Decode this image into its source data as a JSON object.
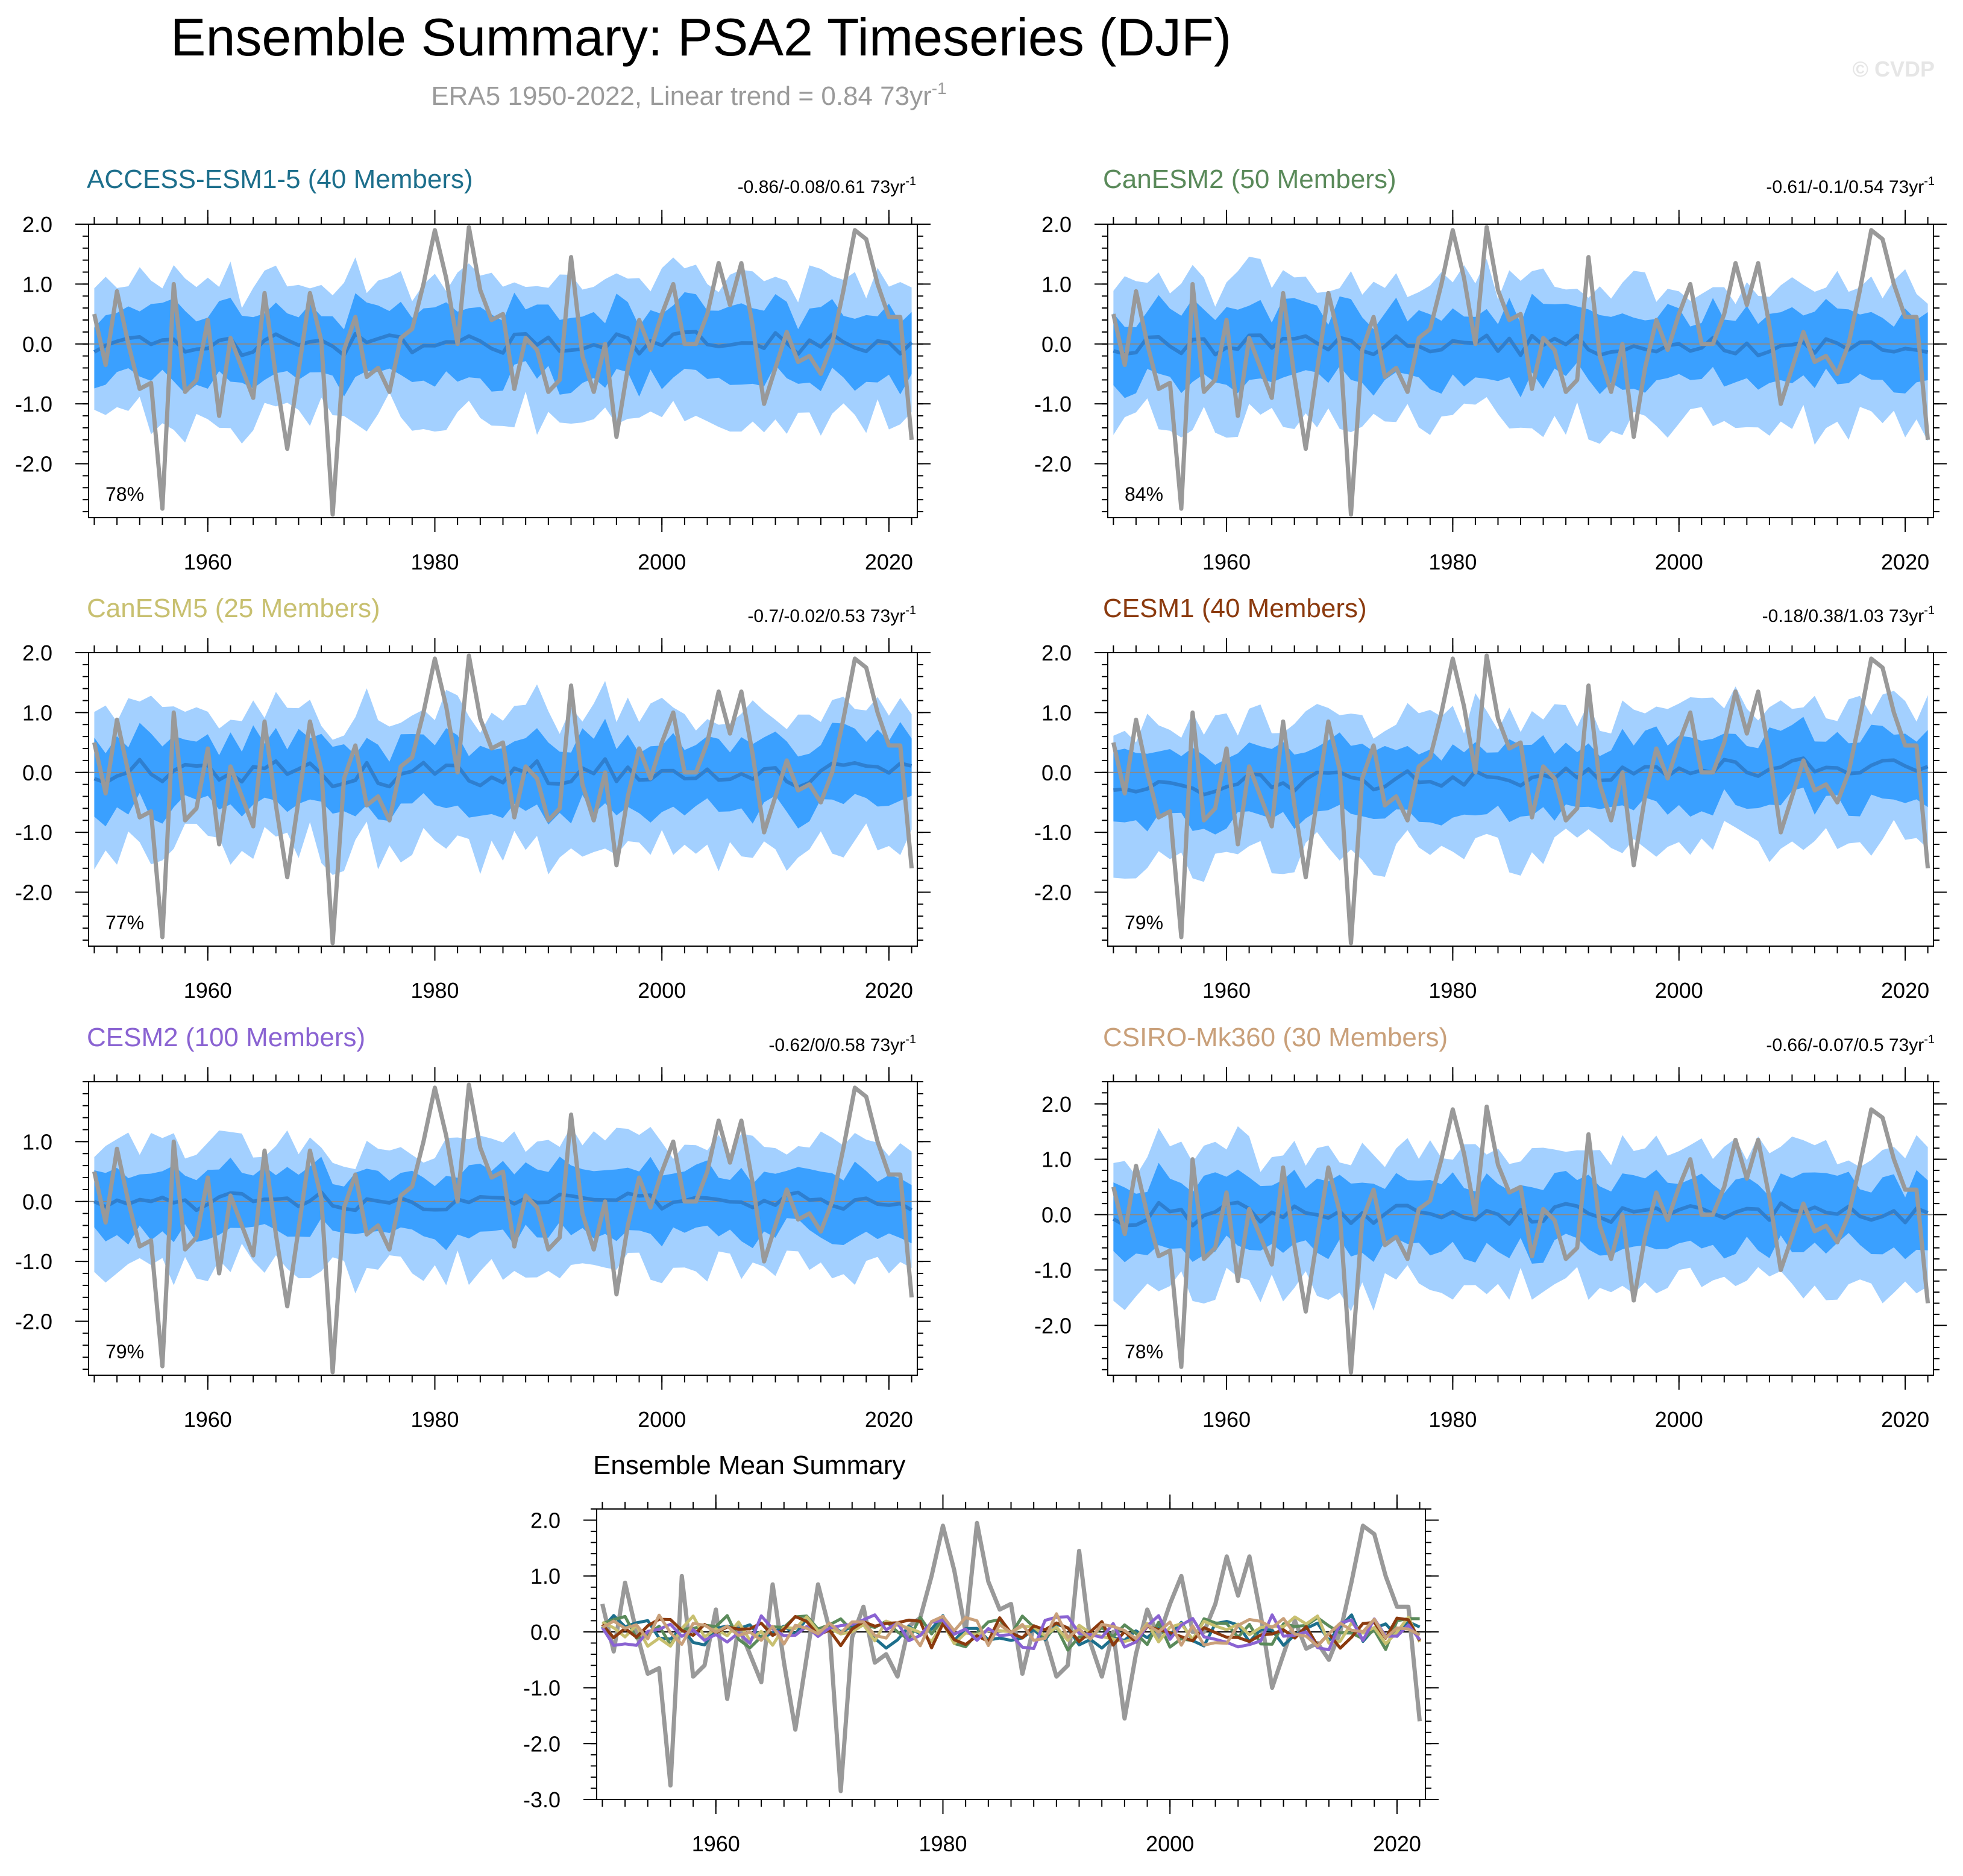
{
  "header": {
    "title": "Ensemble Summary: PSA2 Timeseries (DJF)",
    "subtitle_prefix": "ERA5 1950-2022, Linear trend = 0.84 73yr",
    "subtitle_exponent": "-1",
    "watermark": "© CVDP"
  },
  "colors": {
    "obs": "#999999",
    "band_outer": "#a3d0ff",
    "band_inner": "#3aa0ff",
    "ens_mean": "#2e7fd0",
    "zero_line": "#8a8a8a"
  },
  "chart_data": [
    {
      "id": "access",
      "type": "area",
      "title": "ACCESS-ESM1-5 (40 Members)",
      "title_color": "#1d6f8c",
      "trend_text": "-0.86/-0.08/0.61 73yr",
      "trend_exp": "-1",
      "percent": "78%",
      "ylim": [
        -2.9,
        2.0
      ],
      "yticks": [
        2.0,
        1.0,
        0.0,
        -1.0,
        -2.0
      ],
      "ytick_labels": [
        "2.0",
        "1.0",
        "0.0",
        "-1.0",
        "-2.0"
      ],
      "xlim": [
        1949.5,
        2022.5
      ],
      "xticks": [
        1960,
        1980,
        2000,
        2020
      ],
      "xtick_labels": [
        "1960",
        "1980",
        "2000",
        "2020"
      ],
      "band_amp": [
        1.0,
        1.0
      ],
      "mean_seed": 11,
      "mean_amp": 0.16
    },
    {
      "id": "canesm2",
      "type": "area",
      "title": "CanESM2 (50 Members)",
      "title_color": "#5a8a5a",
      "trend_text": "-0.61/-0.1/0.54 73yr",
      "trend_exp": "-1",
      "percent": "84%",
      "ylim": [
        -2.9,
        2.0
      ],
      "yticks": [
        2.0,
        1.0,
        0.0,
        -1.0,
        -2.0
      ],
      "ytick_labels": [
        "2.0",
        "1.0",
        "0.0",
        "-1.0",
        "-2.0"
      ],
      "xlim": [
        1949.5,
        2022.5
      ],
      "xticks": [
        1960,
        1980,
        2000,
        2020
      ],
      "xtick_labels": [
        "1960",
        "1980",
        "2000",
        "2020"
      ],
      "band_amp": [
        1.0,
        1.0
      ],
      "mean_seed": 23,
      "mean_amp": 0.16
    },
    {
      "id": "canesm5",
      "type": "area",
      "title": "CanESM5 (25 Members)",
      "title_color": "#c8c070",
      "trend_text": "-0.7/-0.02/0.53 73yr",
      "trend_exp": "-1",
      "percent": "77%",
      "ylim": [
        -2.9,
        2.0
      ],
      "yticks": [
        2.0,
        1.0,
        0.0,
        -1.0,
        -2.0
      ],
      "ytick_labels": [
        "2.0",
        "1.0",
        "0.0",
        "-1.0",
        "-2.0"
      ],
      "xlim": [
        1949.5,
        2022.5
      ],
      "xticks": [
        1960,
        1980,
        2000,
        2020
      ],
      "xtick_labels": [
        "1960",
        "1980",
        "2000",
        "2020"
      ],
      "band_amp": [
        1.0,
        1.0
      ],
      "mean_seed": 37,
      "mean_amp": 0.2
    },
    {
      "id": "cesm1",
      "type": "area",
      "title": "CESM1 (40 Members)",
      "title_color": "#8b3a0e",
      "trend_text": "-0.18/0.38/1.03 73yr",
      "trend_exp": "-1",
      "percent": "79%",
      "ylim": [
        -2.9,
        2.0
      ],
      "yticks": [
        2.0,
        1.0,
        0.0,
        -1.0,
        -2.0
      ],
      "ytick_labels": [
        "2.0",
        "1.0",
        "0.0",
        "-1.0",
        "-2.0"
      ],
      "xlim": [
        1949.5,
        2022.5
      ],
      "xticks": [
        1960,
        1980,
        2000,
        2020
      ],
      "xtick_labels": [
        "1960",
        "1980",
        "2000",
        "2020"
      ],
      "band_amp": [
        1.0,
        1.0
      ],
      "mean_seed": 41,
      "mean_amp": 0.12,
      "mean_trend": [
        -0.25,
        0.15
      ]
    },
    {
      "id": "cesm2",
      "type": "area",
      "title": "CESM2 (100 Members)",
      "title_color": "#8a63d2",
      "trend_text": "-0.62/0/0.58 73yr",
      "trend_exp": "-1",
      "percent": "79%",
      "ylim": [
        -2.9,
        2.0
      ],
      "yticks": [
        1.0,
        0.0,
        -1.0,
        -2.0
      ],
      "ytick_labels": [
        "1.0",
        "0.0",
        "-1.0",
        "-2.0"
      ],
      "xlim": [
        1949.5,
        2022.5
      ],
      "xticks": [
        1960,
        1980,
        2000,
        2020
      ],
      "xtick_labels": [
        "1960",
        "1980",
        "2000",
        "2020"
      ],
      "band_amp": [
        0.9,
        0.9
      ],
      "mean_seed": 53,
      "mean_amp": 0.1
    },
    {
      "id": "csiro",
      "type": "area",
      "title": "CSIRO-Mk360 (30 Members)",
      "title_color": "#c9a07a",
      "trend_text": "-0.66/-0.07/0.5 73yr",
      "trend_exp": "-1",
      "percent": "78%",
      "ylim": [
        -2.9,
        2.4
      ],
      "yticks": [
        2.0,
        1.0,
        0.0,
        -1.0,
        -2.0
      ],
      "ytick_labels": [
        "2.0",
        "1.0",
        "0.0",
        "-1.0",
        "-2.0"
      ],
      "xlim": [
        1949.5,
        2022.5
      ],
      "xticks": [
        1960,
        1980,
        2000,
        2020
      ],
      "xtick_labels": [
        "1960",
        "1980",
        "2000",
        "2020"
      ],
      "band_amp": [
        1.05,
        1.05
      ],
      "mean_seed": 67,
      "mean_amp": 0.17
    },
    {
      "id": "summary",
      "type": "line",
      "title": "Ensemble Mean Summary",
      "title_color": "#000000",
      "ylim": [
        -3.0,
        2.2
      ],
      "yticks": [
        2.0,
        1.0,
        0.0,
        -1.0,
        -2.0,
        -3.0
      ],
      "ytick_labels": [
        "2.0",
        "1.0",
        "0.0",
        "-1.0",
        "-2.0",
        "-3.0"
      ],
      "xlim": [
        1949.5,
        2022.5
      ],
      "xticks": [
        1960,
        1980,
        2000,
        2020
      ],
      "xtick_labels": [
        "1960",
        "1980",
        "2000",
        "2020"
      ],
      "series_colors": [
        "#1d6f8c",
        "#5a8a5a",
        "#c8c070",
        "#8b3a0e",
        "#8a63d2",
        "#c9a07a"
      ]
    }
  ],
  "observed": {
    "name": "ERA5",
    "years": [
      1950,
      1951,
      1952,
      1953,
      1954,
      1955,
      1956,
      1957,
      1958,
      1959,
      1960,
      1961,
      1962,
      1963,
      1964,
      1965,
      1966,
      1967,
      1968,
      1969,
      1970,
      1971,
      1972,
      1973,
      1974,
      1975,
      1976,
      1977,
      1978,
      1979,
      1980,
      1981,
      1982,
      1983,
      1984,
      1985,
      1986,
      1987,
      1988,
      1989,
      1990,
      1991,
      1992,
      1993,
      1994,
      1995,
      1996,
      1997,
      1998,
      1999,
      2000,
      2001,
      2002,
      2003,
      2004,
      2005,
      2006,
      2007,
      2008,
      2009,
      2010,
      2011,
      2012,
      2013,
      2014,
      2015,
      2016,
      2017,
      2018,
      2019,
      2020,
      2021,
      2022
    ],
    "values": [
      0.5,
      -0.35,
      0.88,
      0.0,
      -0.75,
      -0.65,
      -2.75,
      1.0,
      -0.8,
      -0.6,
      0.4,
      -1.2,
      0.1,
      -0.4,
      -0.9,
      0.85,
      -0.55,
      -1.75,
      -0.45,
      0.85,
      0.05,
      -2.85,
      -0.1,
      0.45,
      -0.55,
      -0.4,
      -0.8,
      0.1,
      0.25,
      1.0,
      1.9,
      1.1,
      0.0,
      1.95,
      0.9,
      0.4,
      0.5,
      -0.75,
      0.1,
      -0.1,
      -0.8,
      -0.6,
      1.45,
      -0.2,
      -0.8,
      0.0,
      -1.55,
      -0.4,
      0.4,
      -0.1,
      0.5,
      1.0,
      0.0,
      0.0,
      0.5,
      1.35,
      0.65,
      1.35,
      0.3,
      -1.0,
      -0.4,
      0.2,
      -0.3,
      -0.2,
      -0.5,
      0.0,
      0.9,
      1.9,
      1.75,
      1.0,
      0.45,
      0.45,
      -1.6
    ]
  }
}
